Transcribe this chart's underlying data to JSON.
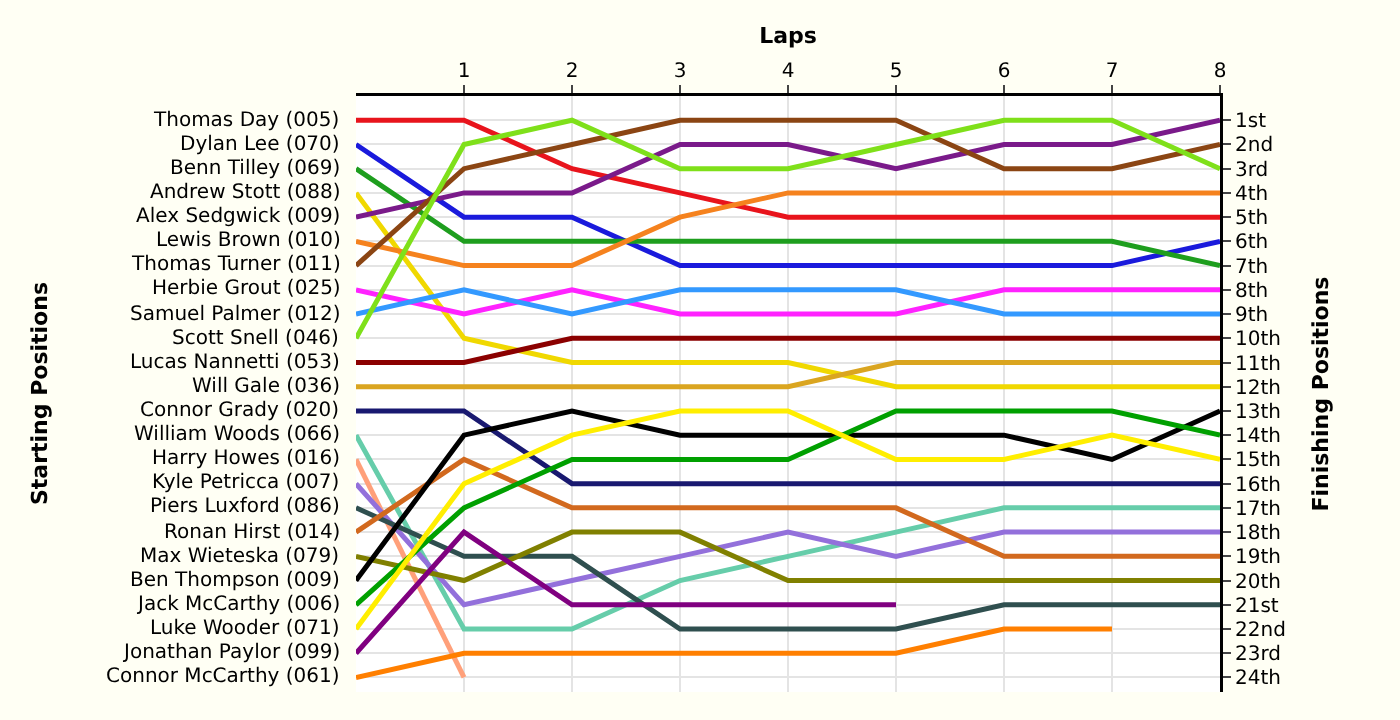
{
  "chart_data": {
    "type": "line",
    "xlabel": "Laps",
    "annotations": [
      "Starting Positions"
    ],
    "y2label": "Finishing Positions",
    "x": [
      0,
      1,
      2,
      3,
      4,
      5,
      6,
      7,
      8
    ],
    "xlim": [
      0,
      8
    ],
    "xticks": [
      1,
      2,
      3,
      4,
      5,
      6,
      7,
      8
    ],
    "y2lim": [
      24.6,
      0
    ],
    "y2ticks": [
      {
        "value": 1,
        "label": "1st"
      },
      {
        "value": 2,
        "label": "2nd"
      },
      {
        "value": 3,
        "label": "3rd"
      },
      {
        "value": 4,
        "label": "4th"
      },
      {
        "value": 5,
        "label": "5th"
      },
      {
        "value": 6,
        "label": "6th"
      },
      {
        "value": 7,
        "label": "7th"
      },
      {
        "value": 8,
        "label": "8th"
      },
      {
        "value": 9,
        "label": "9th"
      },
      {
        "value": 10,
        "label": "10th"
      },
      {
        "value": 11,
        "label": "11th"
      },
      {
        "value": 12,
        "label": "12th"
      },
      {
        "value": 13,
        "label": "13th"
      },
      {
        "value": 14,
        "label": "14th"
      },
      {
        "value": 15,
        "label": "15th"
      },
      {
        "value": 16,
        "label": "16th"
      },
      {
        "value": 17,
        "label": "17th"
      },
      {
        "value": 18,
        "label": "18th"
      },
      {
        "value": 19,
        "label": "19th"
      },
      {
        "value": 20,
        "label": "20th"
      },
      {
        "value": 21,
        "label": "21st"
      },
      {
        "value": 22,
        "label": "22nd"
      },
      {
        "value": 23,
        "label": "23rd"
      },
      {
        "value": 24,
        "label": "24th"
      }
    ],
    "grid": true,
    "legend": false,
    "marker": "none",
    "line_style": "solid",
    "series": [
      {
        "name": "Thomas Day (005)",
        "axis": "y2",
        "color": "#e8141c",
        "values": [
          1,
          1,
          3,
          4,
          5,
          5,
          5,
          5,
          5
        ]
      },
      {
        "name": "Dylan Lee (070)",
        "axis": "y2",
        "color": "#1a1adc",
        "values": [
          2,
          5,
          5,
          7,
          7,
          7,
          7,
          7,
          6
        ]
      },
      {
        "name": "Benn Tilley (069)",
        "axis": "y2",
        "color": "#1e9e1e",
        "values": [
          3,
          6,
          6,
          6,
          6,
          6,
          6,
          6,
          7
        ]
      },
      {
        "name": "Andrew Stott (088)",
        "axis": "y2",
        "color": "#f0d800",
        "values": [
          4,
          10,
          11,
          11,
          11,
          12,
          12,
          12,
          12
        ]
      },
      {
        "name": "Alex Sedgwick (009)",
        "axis": "y2",
        "color": "#7a1a8a",
        "values": [
          5,
          4,
          4,
          2,
          2,
          3,
          2,
          2,
          1
        ]
      },
      {
        "name": "Lewis Brown (010)",
        "axis": "y2",
        "color": "#f5821e",
        "values": [
          6,
          7,
          7,
          5,
          4,
          4,
          4,
          4,
          4
        ]
      },
      {
        "name": "Thomas Turner (011)",
        "axis": "y2",
        "color": "#8b4513",
        "values": [
          7,
          3,
          2,
          1,
          1,
          1,
          3,
          3,
          2
        ]
      },
      {
        "name": "Herbie Grout (025)",
        "axis": "y2",
        "color": "#ff22ff",
        "values": [
          8,
          9,
          8,
          9,
          9,
          9,
          8,
          8,
          8
        ]
      },
      {
        "name": "Samuel Palmer (012)",
        "axis": "y2",
        "color": "#3399ff",
        "values": [
          9,
          8,
          9,
          8,
          8,
          8,
          9,
          9,
          9
        ]
      },
      {
        "name": "Scott Snell (046)",
        "axis": "y2",
        "color": "#7fe01a",
        "values": [
          10,
          2,
          1,
          3,
          3,
          2,
          1,
          1,
          3
        ]
      },
      {
        "name": "Lucas Nannetti (053)",
        "axis": "y2",
        "color": "#8b0000",
        "values": [
          11,
          11,
          10,
          10,
          10,
          10,
          10,
          10,
          10
        ]
      },
      {
        "name": "Will Gale (036)",
        "axis": "y2",
        "color": "#daa520",
        "values": [
          12,
          12,
          12,
          12,
          12,
          11,
          11,
          11,
          11
        ]
      },
      {
        "name": "Connor Grady (020)",
        "axis": "y2",
        "color": "#191970",
        "values": [
          13,
          13,
          16,
          16,
          16,
          16,
          16,
          16,
          16
        ]
      },
      {
        "name": "William Woods (066)",
        "axis": "y2",
        "color": "#66cdaa",
        "values": [
          14,
          22,
          22,
          20,
          19,
          18,
          17,
          17,
          17
        ]
      },
      {
        "name": "Harry Howes (016)",
        "axis": "y2",
        "color": "#ffa07a",
        "values": [
          15,
          24,
          null,
          null,
          null,
          null,
          null,
          null,
          null
        ]
      },
      {
        "name": "Kyle Petricca (007)",
        "axis": "y2",
        "color": "#9370db",
        "values": [
          16,
          21,
          20,
          19,
          18,
          19,
          18,
          18,
          18
        ]
      },
      {
        "name": "Piers Luxford (086)",
        "axis": "y2",
        "color": "#2f4f4f",
        "values": [
          17,
          19,
          19,
          22,
          22,
          22,
          21,
          21,
          21
        ]
      },
      {
        "name": "Ronan Hirst (014)",
        "axis": "y2",
        "color": "#d2691e",
        "values": [
          18,
          15,
          17,
          17,
          17,
          17,
          19,
          19,
          19
        ]
      },
      {
        "name": "Max Wieteska (079)",
        "axis": "y2",
        "color": "#808000",
        "values": [
          19,
          20,
          18,
          18,
          20,
          20,
          20,
          20,
          20
        ]
      },
      {
        "name": "Ben Thompson (009)",
        "axis": "y2",
        "color": "#000000",
        "values": [
          20,
          14,
          13,
          14,
          14,
          14,
          14,
          15,
          13
        ]
      },
      {
        "name": "Jack McCarthy (006)",
        "axis": "y2",
        "color": "#00a000",
        "values": [
          21,
          17,
          15,
          15,
          15,
          13,
          13,
          13,
          14
        ]
      },
      {
        "name": "Luke Wooder (071)",
        "axis": "y2",
        "color": "#ffee00",
        "values": [
          22,
          16,
          14,
          13,
          13,
          15,
          15,
          14,
          15
        ]
      },
      {
        "name": "Jonathan Paylor (099)",
        "axis": "y2",
        "color": "#800080",
        "values": [
          23,
          18,
          21,
          21,
          21,
          21,
          null,
          null,
          null
        ]
      },
      {
        "name": "Connor McCarthy (061)",
        "axis": "y2",
        "color": "#ff7f00",
        "values": [
          24,
          23,
          23,
          23,
          23,
          23,
          22,
          22,
          null
        ]
      }
    ]
  }
}
